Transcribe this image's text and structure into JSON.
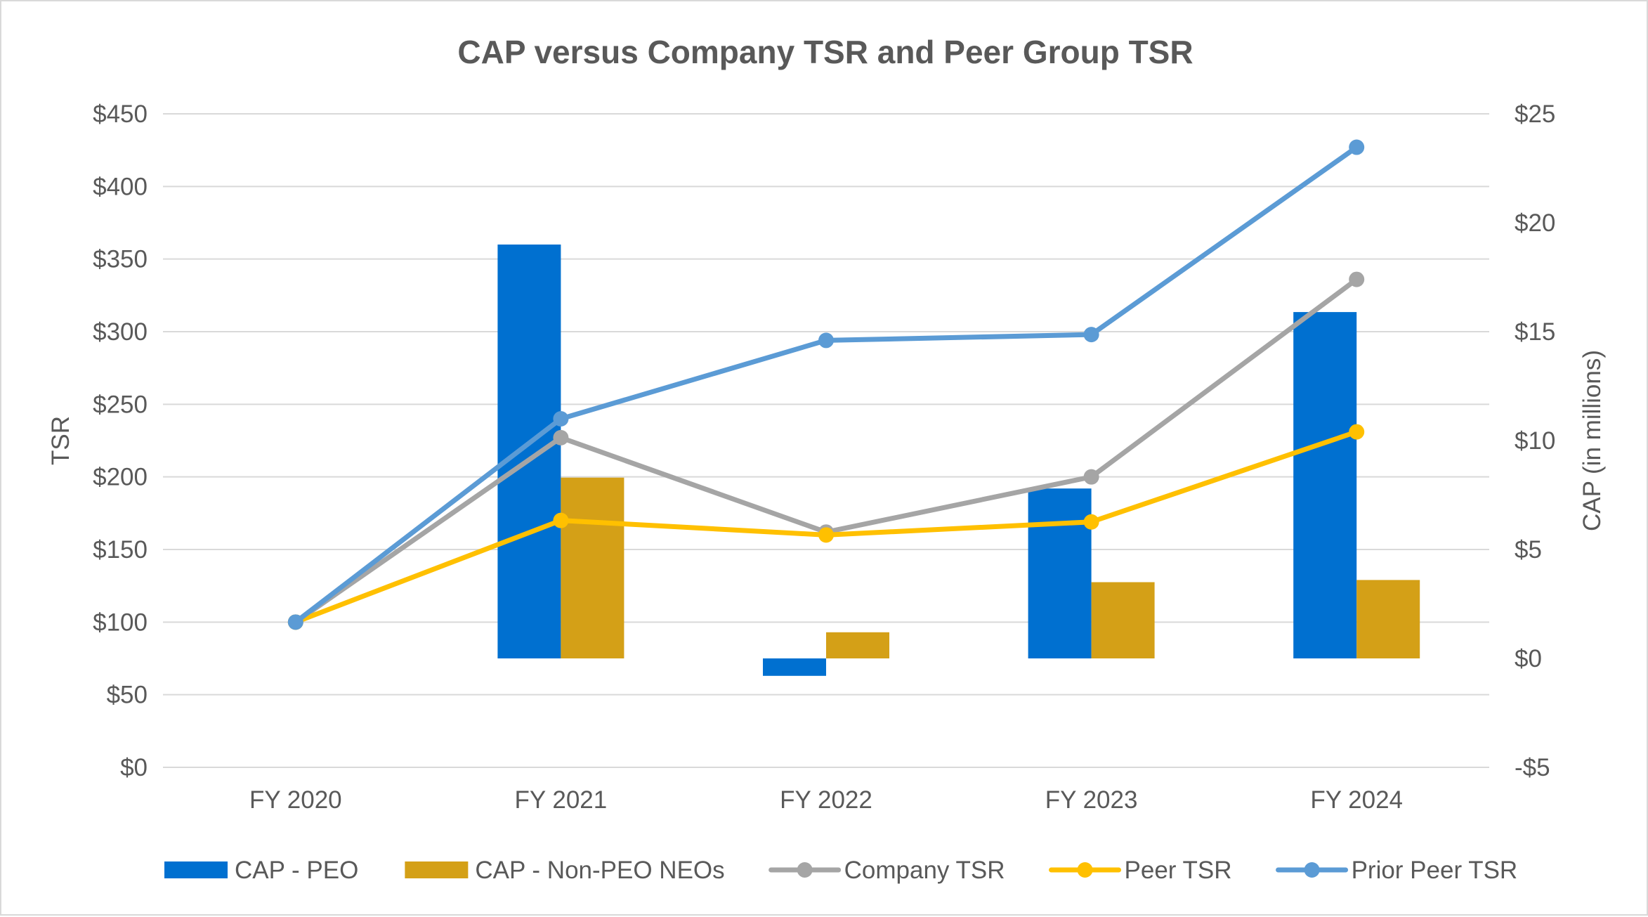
{
  "chart_data": {
    "type": "bar",
    "title": "CAP versus Company TSR and Peer Group TSR",
    "categories": [
      "FY 2020",
      "FY 2021",
      "FY 2022",
      "FY 2023",
      "FY 2024"
    ],
    "y_left": {
      "label": "TSR",
      "range": [
        0,
        450
      ],
      "ticks": [
        0,
        50,
        100,
        150,
        200,
        250,
        300,
        350,
        400,
        450
      ],
      "tick_labels": [
        "$0",
        "$50",
        "$100",
        "$150",
        "$200",
        "$250",
        "$300",
        "$350",
        "$400",
        "$450"
      ]
    },
    "y_right": {
      "label": "CAP (in millions)",
      "range": [
        -5,
        25
      ],
      "ticks": [
        -5,
        0,
        5,
        10,
        15,
        20,
        25
      ],
      "tick_labels": [
        "-$5",
        "$0",
        "$5",
        "$10",
        "$15",
        "$20",
        "$25"
      ]
    },
    "series": [
      {
        "name": "CAP - PEO",
        "kind": "bar",
        "axis": "right",
        "color": "#0070d0",
        "values": [
          null,
          19.0,
          -0.8,
          7.8,
          15.9
        ]
      },
      {
        "name": "CAP - Non-PEO NEOs",
        "kind": "bar",
        "axis": "right",
        "color": "#d4a017",
        "values": [
          null,
          8.3,
          1.2,
          3.5,
          3.6
        ]
      },
      {
        "name": "Company TSR",
        "kind": "line",
        "axis": "left",
        "color": "#a5a5a5",
        "values": [
          100,
          227,
          162,
          200,
          336
        ]
      },
      {
        "name": "Peer TSR",
        "kind": "line",
        "axis": "left",
        "color": "#ffc000",
        "values": [
          100,
          170,
          160,
          169,
          231
        ]
      },
      {
        "name": "Prior Peer TSR",
        "kind": "line",
        "axis": "left",
        "color": "#5b9bd5",
        "values": [
          100,
          240,
          294,
          298,
          427
        ]
      }
    ],
    "grid": true,
    "legend_position": "bottom"
  }
}
